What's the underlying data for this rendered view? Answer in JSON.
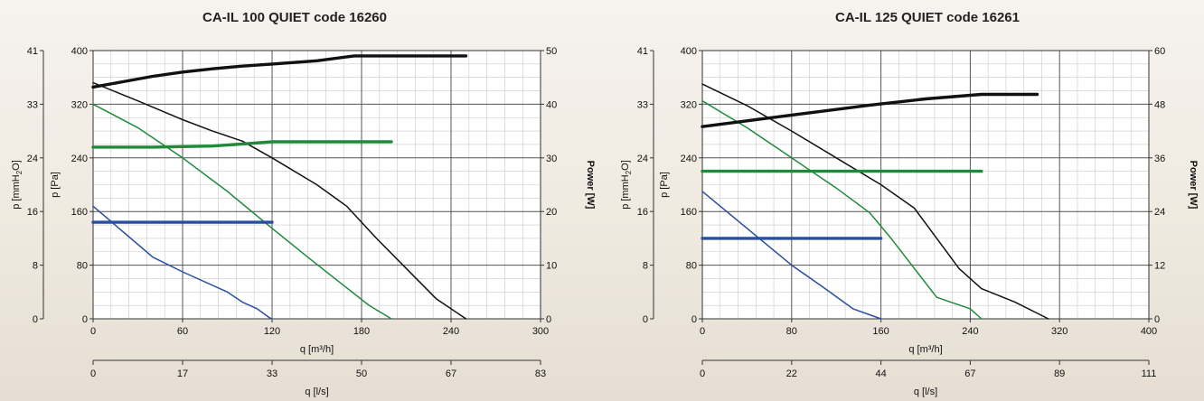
{
  "chart_data": [
    {
      "type": "line",
      "title": "CA-IL 100 QUIET code 16260",
      "x_label": "q [m³/h]",
      "x2_label": "q [l/s]",
      "y_label_pa": "p [Pa]",
      "y_label_mmh2o_main": "p [mmH",
      "y_label_mmh2o_sub": "2",
      "y_label_mmh2o_end": "O]",
      "y_label_power": "Power [W]",
      "x_range": [
        0,
        300
      ],
      "y_pa_range": [
        0,
        400
      ],
      "y_power_range": [
        0,
        50
      ],
      "x_ticks": [
        "0",
        "60",
        "120",
        "180",
        "240",
        "300"
      ],
      "x2_ticks": [
        "0",
        "17",
        "33",
        "50",
        "67",
        "83"
      ],
      "y_pa_ticks": [
        "0",
        "80",
        "160",
        "240",
        "320",
        "400"
      ],
      "y_mm_ticks": [
        "0",
        "8",
        "16",
        "24",
        "33",
        "41"
      ],
      "y_power_ticks": [
        "0",
        "10",
        "20",
        "30",
        "40",
        "50"
      ],
      "grid": true,
      "series": [
        {
          "role": "pressure",
          "color": "#111111",
          "axis": "pa",
          "points": [
            [
              0,
              352
            ],
            [
              30,
              325
            ],
            [
              60,
              297
            ],
            [
              80,
              280
            ],
            [
              100,
              265
            ],
            [
              120,
              240
            ],
            [
              150,
              200
            ],
            [
              170,
              168
            ],
            [
              190,
              120
            ],
            [
              210,
              75
            ],
            [
              230,
              30
            ],
            [
              250,
              0
            ]
          ]
        },
        {
          "role": "pressure",
          "color": "#1e8a3a",
          "axis": "pa",
          "points": [
            [
              0,
              320
            ],
            [
              30,
              285
            ],
            [
              60,
              240
            ],
            [
              90,
              190
            ],
            [
              120,
              135
            ],
            [
              145,
              90
            ],
            [
              165,
              55
            ],
            [
              185,
              20
            ],
            [
              200,
              0
            ]
          ]
        },
        {
          "role": "pressure",
          "color": "#274ea0",
          "axis": "pa",
          "points": [
            [
              0,
              168
            ],
            [
              20,
              130
            ],
            [
              40,
              92
            ],
            [
              60,
              70
            ],
            [
              90,
              40
            ],
            [
              100,
              25
            ],
            [
              110,
              15
            ],
            [
              118,
              2
            ],
            [
              120,
              0
            ]
          ]
        },
        {
          "role": "power",
          "color": "#111111",
          "axis": "power",
          "points": [
            [
              0,
              43.2
            ],
            [
              20,
              44.2
            ],
            [
              40,
              45.2
            ],
            [
              60,
              46.0
            ],
            [
              80,
              46.6
            ],
            [
              100,
              47.1
            ],
            [
              120,
              47.5
            ],
            [
              150,
              48.1
            ],
            [
              175,
              49.0
            ],
            [
              200,
              49.0
            ],
            [
              250,
              49.0
            ]
          ]
        },
        {
          "role": "power",
          "color": "#1e8a3a",
          "axis": "power",
          "points": [
            [
              0,
              32.0
            ],
            [
              40,
              32.0
            ],
            [
              80,
              32.2
            ],
            [
              100,
              32.6
            ],
            [
              120,
              33.0
            ],
            [
              200,
              33.0
            ]
          ]
        },
        {
          "role": "power",
          "color": "#274ea0",
          "axis": "power",
          "points": [
            [
              0,
              18.0
            ],
            [
              120,
              18.0
            ]
          ]
        }
      ]
    },
    {
      "type": "line",
      "title": "CA-IL 125 QUIET code 16261",
      "x_label": "q [m³/h]",
      "x2_label": "q [l/s]",
      "y_label_pa": "p [Pa]",
      "y_label_mmh2o_main": "p [mmH",
      "y_label_mmh2o_sub": "2",
      "y_label_mmh2o_end": "O]",
      "y_label_power": "Power [W]",
      "x_range": [
        0,
        400
      ],
      "y_pa_range": [
        0,
        400
      ],
      "y_power_range": [
        0,
        60
      ],
      "x_ticks": [
        "0",
        "80",
        "160",
        "240",
        "320",
        "400"
      ],
      "x2_ticks": [
        "0",
        "22",
        "44",
        "67",
        "89",
        "111"
      ],
      "y_pa_ticks": [
        "0",
        "80",
        "160",
        "240",
        "320",
        "400"
      ],
      "y_mm_ticks": [
        "0",
        "8",
        "16",
        "24",
        "33",
        "41"
      ],
      "y_power_ticks": [
        "0",
        "12",
        "24",
        "36",
        "48",
        "60"
      ],
      "grid": true,
      "series": [
        {
          "role": "pressure",
          "color": "#111111",
          "axis": "pa",
          "points": [
            [
              0,
              350
            ],
            [
              40,
              318
            ],
            [
              80,
              280
            ],
            [
              120,
              240
            ],
            [
              160,
              200
            ],
            [
              190,
              165
            ],
            [
              210,
              120
            ],
            [
              230,
              75
            ],
            [
              250,
              45
            ],
            [
              280,
              25
            ],
            [
              310,
              0
            ]
          ]
        },
        {
          "role": "pressure",
          "color": "#1e8a3a",
          "axis": "pa",
          "points": [
            [
              0,
              325
            ],
            [
              40,
              285
            ],
            [
              80,
              240
            ],
            [
              120,
              195
            ],
            [
              150,
              158
            ],
            [
              170,
              118
            ],
            [
              190,
              75
            ],
            [
              210,
              32
            ],
            [
              240,
              15
            ],
            [
              250,
              0
            ]
          ]
        },
        {
          "role": "pressure",
          "color": "#274ea0",
          "axis": "pa",
          "points": [
            [
              0,
              190
            ],
            [
              40,
              135
            ],
            [
              80,
              80
            ],
            [
              110,
              45
            ],
            [
              135,
              15
            ],
            [
              160,
              0
            ]
          ]
        },
        {
          "role": "power",
          "color": "#111111",
          "axis": "power",
          "points": [
            [
              0,
              43.0
            ],
            [
              50,
              44.6
            ],
            [
              100,
              46.2
            ],
            [
              150,
              47.8
            ],
            [
              200,
              49.2
            ],
            [
              250,
              50.2
            ],
            [
              300,
              50.2
            ]
          ]
        },
        {
          "role": "power",
          "color": "#1e8a3a",
          "axis": "power",
          "points": [
            [
              0,
              33.0
            ],
            [
              250,
              33.0
            ]
          ]
        },
        {
          "role": "power",
          "color": "#274ea0",
          "axis": "power",
          "points": [
            [
              0,
              18.0
            ],
            [
              160,
              18.0
            ]
          ]
        }
      ]
    }
  ]
}
